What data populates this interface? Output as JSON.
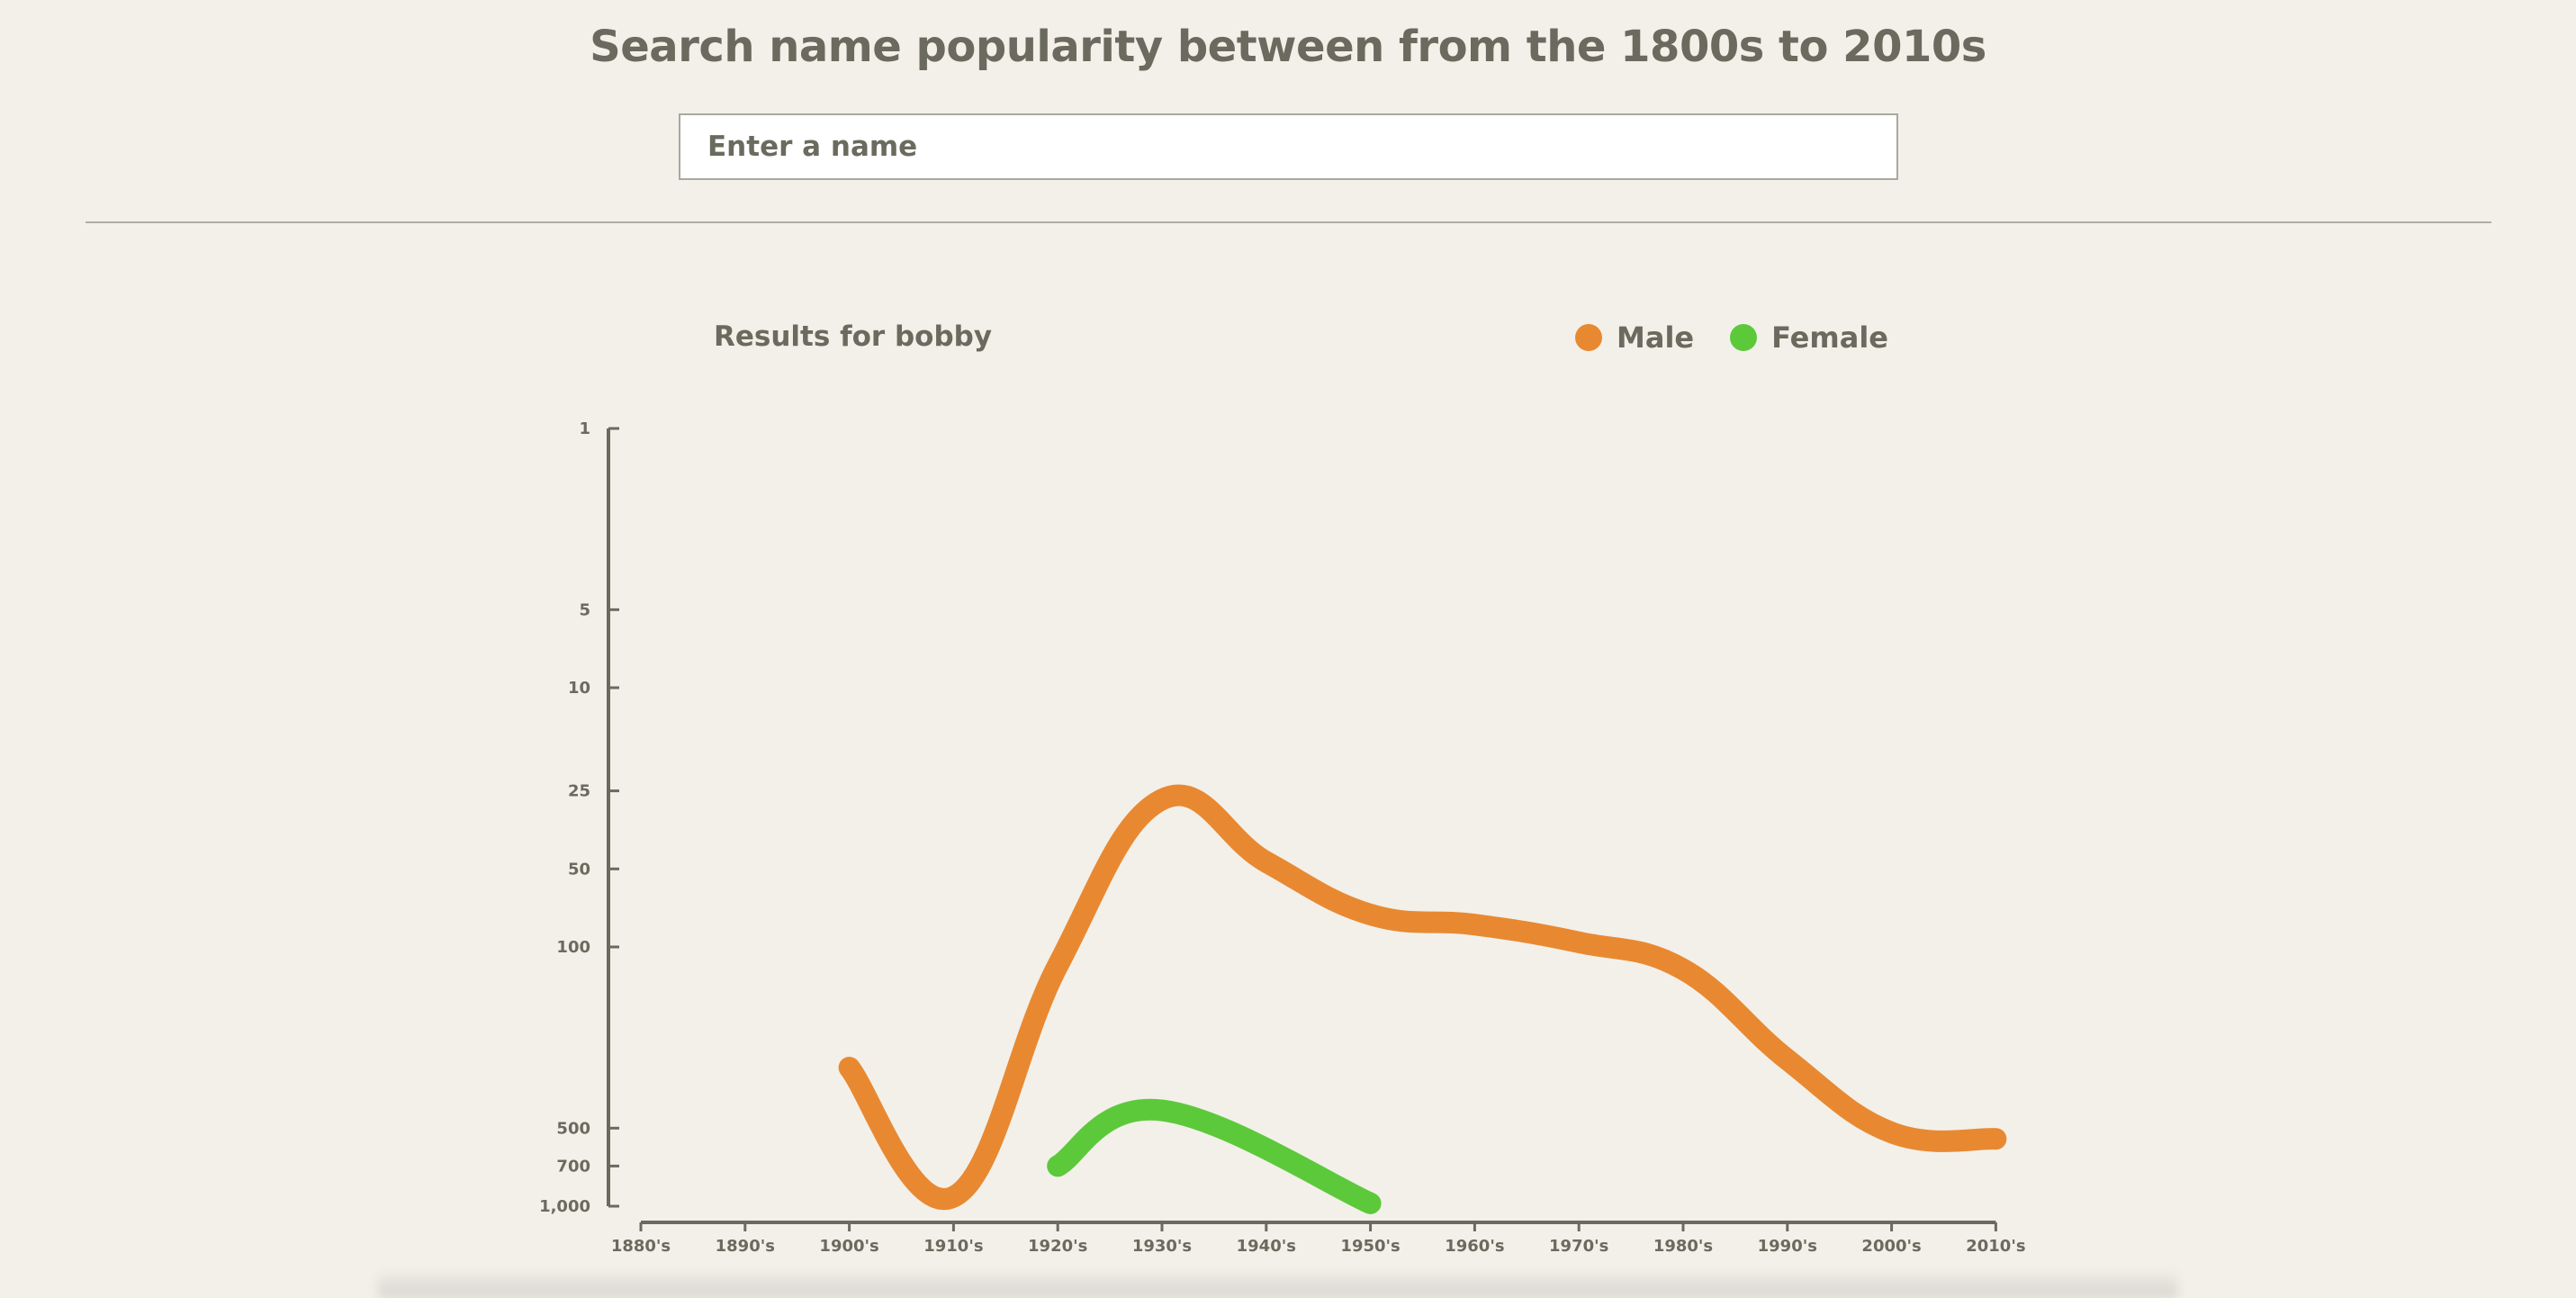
{
  "header": {
    "title": "Search name popularity between from the 1800s to 2010s"
  },
  "search": {
    "placeholder": "Enter a name",
    "value": ""
  },
  "results": {
    "title": "Results for bobby"
  },
  "legend": {
    "items": [
      {
        "label": "Male",
        "color": "#e88932"
      },
      {
        "label": "Female",
        "color": "#5cc93b"
      }
    ]
  },
  "chart_data": {
    "type": "line",
    "title": "",
    "xlabel": "",
    "ylabel": "",
    "y_scale": "log",
    "y_reversed": true,
    "ylim": [
      1,
      1000
    ],
    "grid": false,
    "legend_position": "top-right",
    "categories": [
      "1880's",
      "1890's",
      "1900's",
      "1910's",
      "1920's",
      "1930's",
      "1940's",
      "1950's",
      "1960's",
      "1970's",
      "1980's",
      "1990's",
      "2000's",
      "2010's"
    ],
    "y_ticks": [
      {
        "value": 1,
        "label": "1"
      },
      {
        "value": 5,
        "label": "5"
      },
      {
        "value": 10,
        "label": "10"
      },
      {
        "value": 25,
        "label": "25"
      },
      {
        "value": 50,
        "label": "50"
      },
      {
        "value": 100,
        "label": "100"
      },
      {
        "value": 500,
        "label": "500"
      },
      {
        "value": 700,
        "label": "700"
      },
      {
        "value": 1000,
        "label": "1,000"
      }
    ],
    "series": [
      {
        "name": "Male",
        "color": "#e88932",
        "values": [
          null,
          null,
          292,
          920,
          118,
          27,
          47,
          75,
          82,
          96,
          122,
          272,
          520,
          550
        ]
      },
      {
        "name": "Female",
        "color": "#5cc93b",
        "values": [
          null,
          null,
          null,
          null,
          700,
          427,
          null,
          975,
          null,
          null,
          null,
          null,
          null,
          null
        ]
      }
    ]
  }
}
